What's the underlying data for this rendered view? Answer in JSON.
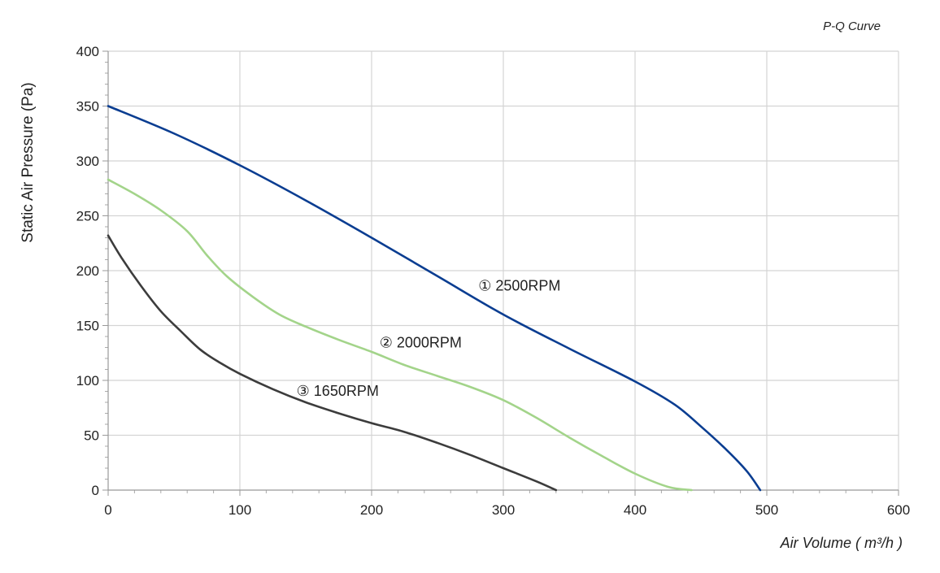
{
  "chart_data": {
    "type": "line",
    "title": "P-Q Curve",
    "xlabel": "Air Volume ( m³/h )",
    "ylabel": "Static Air Pressure  (Pa)",
    "xlim": [
      0,
      600
    ],
    "ylim": [
      0,
      400
    ],
    "x_ticks": [
      "0",
      "100",
      "200",
      "300",
      "400",
      "500",
      "600"
    ],
    "y_ticks": [
      "0",
      "50",
      "100",
      "150",
      "200",
      "250",
      "300",
      "350",
      "400"
    ],
    "grid": true,
    "series": [
      {
        "name": "① 2500RPM",
        "color": "#0a3d91",
        "label_at": [
          281,
          182
        ],
        "points": [
          [
            0,
            350
          ],
          [
            50,
            325
          ],
          [
            100,
            296
          ],
          [
            150,
            264
          ],
          [
            200,
            230
          ],
          [
            250,
            195
          ],
          [
            300,
            160
          ],
          [
            350,
            129
          ],
          [
            400,
            99
          ],
          [
            430,
            78
          ],
          [
            450,
            58
          ],
          [
            470,
            36
          ],
          [
            485,
            17
          ],
          [
            495,
            0
          ]
        ]
      },
      {
        "name": "② 2000RPM",
        "color": "#a3d48a",
        "label_at": [
          206,
          130
        ],
        "points": [
          [
            0,
            283
          ],
          [
            20,
            270
          ],
          [
            40,
            255
          ],
          [
            60,
            236
          ],
          [
            75,
            214
          ],
          [
            90,
            195
          ],
          [
            110,
            176
          ],
          [
            130,
            160
          ],
          [
            150,
            149
          ],
          [
            175,
            137
          ],
          [
            200,
            126
          ],
          [
            225,
            114
          ],
          [
            250,
            104
          ],
          [
            275,
            94
          ],
          [
            300,
            82
          ],
          [
            325,
            66
          ],
          [
            350,
            48
          ],
          [
            375,
            31
          ],
          [
            400,
            15
          ],
          [
            425,
            3
          ],
          [
            443,
            0
          ]
        ]
      },
      {
        "name": "③ 1650RPM",
        "color": "#3c3c3c",
        "label_at": [
          143,
          86
        ],
        "points": [
          [
            0,
            232
          ],
          [
            10,
            212
          ],
          [
            25,
            186
          ],
          [
            40,
            163
          ],
          [
            55,
            145
          ],
          [
            70,
            128
          ],
          [
            85,
            116
          ],
          [
            100,
            106
          ],
          [
            125,
            92
          ],
          [
            150,
            80
          ],
          [
            175,
            70
          ],
          [
            200,
            61
          ],
          [
            225,
            53
          ],
          [
            250,
            43
          ],
          [
            275,
            32
          ],
          [
            300,
            20
          ],
          [
            325,
            8
          ],
          [
            340,
            0
          ]
        ]
      }
    ]
  }
}
